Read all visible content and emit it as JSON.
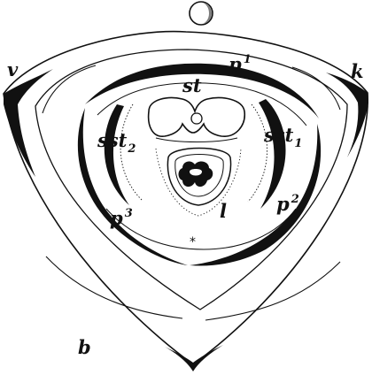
{
  "labels": {
    "v": "v",
    "k": "k",
    "b": "b",
    "st": "st",
    "p1": {
      "base": "p",
      "sup": "1"
    },
    "p2": {
      "base": "p",
      "sup": "2"
    },
    "p3": {
      "base": "p",
      "sup": "3"
    },
    "sst1": {
      "base": "sst",
      "sub": "1"
    },
    "sst2": {
      "base": "sst",
      "sub": "2"
    },
    "l": "l",
    "star": "*"
  },
  "colors": {
    "ink": "#111111",
    "paper": "#ffffff"
  }
}
